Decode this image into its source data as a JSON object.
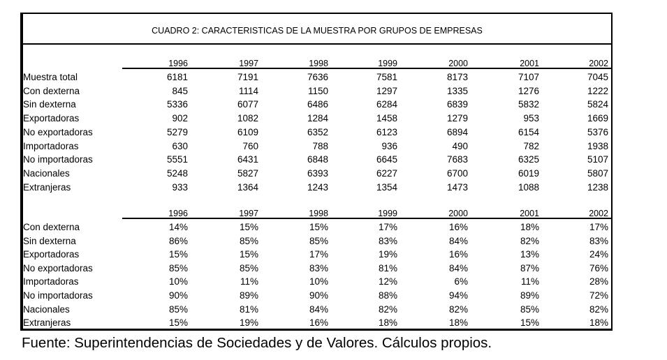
{
  "title": "CUADRO 2: CARACTERISTICAS DE LA MUESTRA POR GRUPOS DE EMPRESAS",
  "years": [
    "1996",
    "1997",
    "1998",
    "1999",
    "2000",
    "2001",
    "2002"
  ],
  "counts": [
    {
      "label": "Muestra total",
      "values": [
        "6181",
        "7191",
        "7636",
        "7581",
        "8173",
        "7107",
        "7045"
      ]
    },
    {
      "label": "Con dexterna",
      "values": [
        "845",
        "1114",
        "1150",
        "1297",
        "1335",
        "1276",
        "1222"
      ]
    },
    {
      "label": "Sin dexterna",
      "values": [
        "5336",
        "6077",
        "6486",
        "6284",
        "6839",
        "5832",
        "5824"
      ]
    },
    {
      "label": "Exportadoras",
      "values": [
        "902",
        "1082",
        "1284",
        "1458",
        "1279",
        "953",
        "1669"
      ]
    },
    {
      "label": "No exportadoras",
      "values": [
        "5279",
        "6109",
        "6352",
        "6123",
        "6894",
        "6154",
        "5376"
      ]
    },
    {
      "label": "Importadoras",
      "values": [
        "630",
        "760",
        "788",
        "936",
        "490",
        "782",
        "1938"
      ]
    },
    {
      "label": "No importadoras",
      "values": [
        "5551",
        "6431",
        "6848",
        "6645",
        "7683",
        "6325",
        "5107"
      ]
    },
    {
      "label": "Nacionales",
      "values": [
        "5248",
        "5827",
        "6393",
        "6227",
        "6700",
        "6019",
        "5807"
      ]
    },
    {
      "label": "Extranjeras",
      "values": [
        "933",
        "1364",
        "1243",
        "1354",
        "1473",
        "1088",
        "1238"
      ]
    }
  ],
  "percents": [
    {
      "label": "Con dexterna",
      "values": [
        "14%",
        "15%",
        "15%",
        "17%",
        "16%",
        "18%",
        "17%"
      ]
    },
    {
      "label": "Sin dexterna",
      "values": [
        "86%",
        "85%",
        "85%",
        "83%",
        "84%",
        "82%",
        "83%"
      ]
    },
    {
      "label": "Exportadoras",
      "values": [
        "15%",
        "15%",
        "17%",
        "19%",
        "16%",
        "13%",
        "24%"
      ]
    },
    {
      "label": "No exportadoras",
      "values": [
        "85%",
        "85%",
        "83%",
        "81%",
        "84%",
        "87%",
        "76%"
      ]
    },
    {
      "label": "Importadoras",
      "values": [
        "10%",
        "11%",
        "10%",
        "12%",
        "6%",
        "11%",
        "28%"
      ]
    },
    {
      "label": "No importadoras",
      "values": [
        "90%",
        "89%",
        "90%",
        "88%",
        "94%",
        "89%",
        "72%"
      ]
    },
    {
      "label": "Nacionales",
      "values": [
        "85%",
        "81%",
        "84%",
        "82%",
        "82%",
        "85%",
        "82%"
      ]
    },
    {
      "label": "Extranjeras",
      "values": [
        "15%",
        "19%",
        "16%",
        "18%",
        "18%",
        "15%",
        "18%"
      ]
    }
  ],
  "footnote": "Fuente: Superintendencias de Sociedades y de Valores. Cálculos propios."
}
